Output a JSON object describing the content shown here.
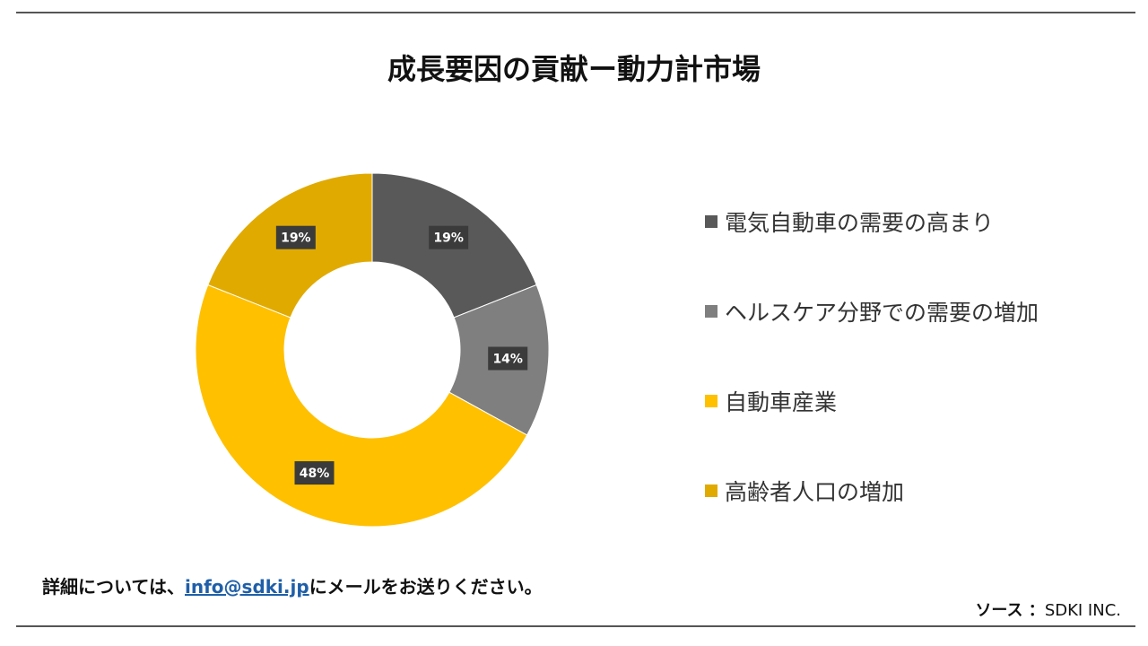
{
  "title": "成長要因の貢献ー動力計市場",
  "chart_data": {
    "type": "pie",
    "donut": true,
    "categories": [
      "電気自動車の需要の高まり",
      "ヘルスケア分野での需要の増加",
      "自動車産業",
      "高齢者人口の増加"
    ],
    "values": [
      19,
      14,
      48,
      19
    ],
    "data_labels": [
      "19%",
      "14%",
      "48%",
      "19%"
    ],
    "colors": [
      "#595959",
      "#7f7f7f",
      "#ffc000",
      "#e0aa00"
    ],
    "legend_position": "right"
  },
  "footer": {
    "prefix": "詳細については、",
    "email": "info@sdki.jp",
    "suffix": "にメールをお送りください。"
  },
  "source": {
    "label": "ソース ：",
    "value": "SDKI INC."
  }
}
